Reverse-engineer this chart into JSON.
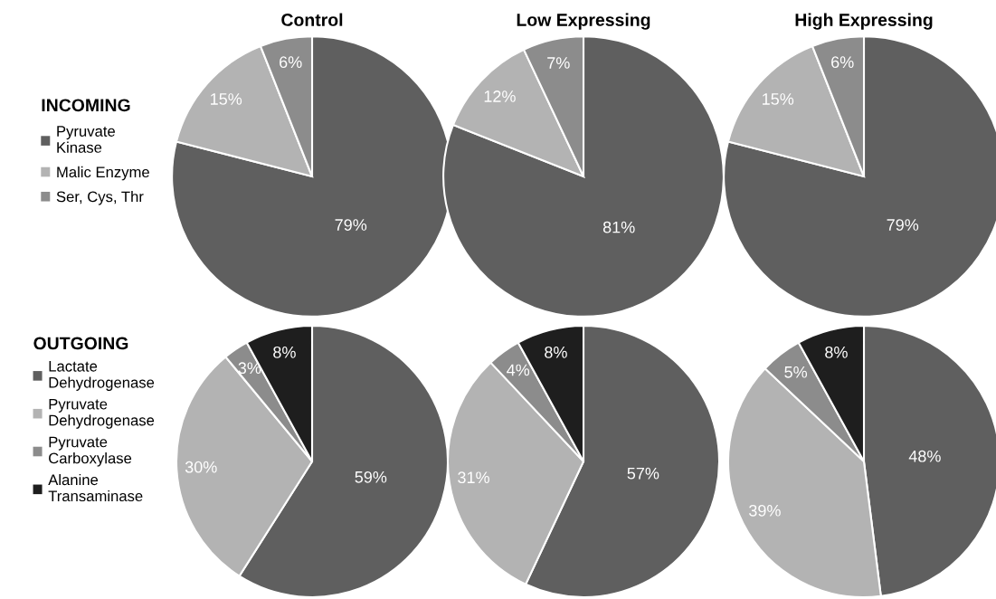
{
  "chart_data": [
    {
      "type": "pie",
      "title": "Control",
      "legend_title": "INCOMING",
      "legend": "left",
      "categories": [
        "Pyruvate\nKinase",
        "Malic Enzyme",
        "Ser, Cys, Thr"
      ],
      "values": [
        79,
        15,
        6
      ],
      "value_labels": [
        "79%",
        "15%",
        "6%"
      ],
      "colors": [
        "#5f5f5f",
        "#b3b3b3",
        "#8c8c8c"
      ]
    },
    {
      "type": "pie",
      "title": "Low Expressing",
      "categories": [
        null,
        null,
        null
      ],
      "values": [
        81,
        12,
        7
      ],
      "value_labels": [
        "81%",
        "12%",
        "7%"
      ],
      "colors": [
        "#5f5f5f",
        "#b3b3b3",
        "#8c8c8c"
      ]
    },
    {
      "type": "pie",
      "title": "High Expressing",
      "categories": [
        null,
        null,
        null
      ],
      "values": [
        79,
        15,
        6
      ],
      "value_labels": [
        "79%",
        "15%",
        "6%"
      ],
      "colors": [
        "#5f5f5f",
        "#b3b3b3",
        "#8c8c8c"
      ]
    },
    {
      "type": "pie",
      "legend_title": "OUTGOING",
      "legend": "left",
      "categories": [
        "Lactate\nDehydrogenase",
        "Pyruvate\nDehydrogenase",
        "Pyruvate\nCarboxylase",
        "Alanine\nTransaminase"
      ],
      "values": [
        59,
        30,
        3,
        8
      ],
      "value_labels": [
        "59%",
        "30%",
        "3%",
        "8%"
      ],
      "colors": [
        "#5f5f5f",
        "#b3b3b3",
        "#8c8c8c",
        "#1e1e1e"
      ]
    },
    {
      "type": "pie",
      "categories": [
        null,
        null,
        null,
        null
      ],
      "values": [
        57,
        31,
        4,
        8
      ],
      "value_labels": [
        "57%",
        "31%",
        "4%",
        "8%"
      ],
      "colors": [
        "#5f5f5f",
        "#b3b3b3",
        "#8c8c8c",
        "#1e1e1e"
      ]
    },
    {
      "type": "pie",
      "categories": [
        null,
        null,
        null,
        null
      ],
      "values": [
        48,
        39,
        5,
        8
      ],
      "value_labels": [
        "48%",
        "39%",
        "5%",
        "8%"
      ],
      "colors": [
        "#5f5f5f",
        "#b3b3b3",
        "#8c8c8c",
        "#1e1e1e"
      ]
    }
  ]
}
